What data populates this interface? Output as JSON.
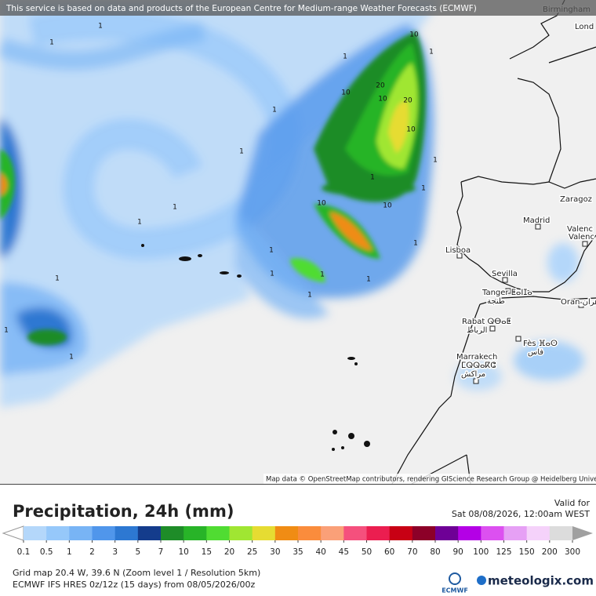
{
  "banner": "This service is based on data and products of the European Centre for Medium-range Weather Forecasts (ECMWF)",
  "map": {
    "cities": [
      {
        "lines": [
          "Birmingham"
        ]
      },
      {
        "lines": [
          "Lond"
        ]
      },
      {
        "lines": [
          "Zaragoz"
        ]
      },
      {
        "lines": [
          "Madrid"
        ]
      },
      {
        "lines": [
          "Valenc"
        ]
      },
      {
        "lines": [
          "Valenc"
        ]
      },
      {
        "lines": [
          "Lisboa"
        ]
      },
      {
        "lines": [
          "Sevilla"
        ]
      },
      {
        "lines": [
          "Tanger ⵟⴰⵏⵊⴰ",
          "طنجة"
        ]
      },
      {
        "lines": [
          "Oran وهران"
        ]
      },
      {
        "lines": [
          "Rabat ⵕⴱⴰⵟ",
          "الرباط"
        ]
      },
      {
        "lines": [
          "Fès ⴼⴰⵙ",
          "فاس"
        ]
      },
      {
        "lines": [
          "Marrakech",
          "ⵎⵕⵕⴰⴽⵛ",
          "مراكش"
        ]
      }
    ],
    "contour_labels": [
      "10",
      "1",
      "1",
      "20",
      "10",
      "20",
      "10",
      "10",
      "1",
      "1",
      "1",
      "1",
      "1",
      "1",
      "10",
      "10",
      "1",
      "1",
      "1",
      "1",
      "1",
      "1",
      "1",
      "1",
      "1",
      "1",
      "1",
      "1"
    ],
    "attribution": "Map data © OpenStreetMap contributors, rendering GIScience Research Group @ Heidelberg University"
  },
  "footer": {
    "title": "Precipitation, 24h (mm)",
    "valid_label": "Valid for",
    "valid_time": "Sat 08/08/2026, 12:00am WEST",
    "legend": {
      "labels": [
        0.1,
        0.5,
        1,
        2,
        3,
        5,
        7,
        10,
        15,
        20,
        25,
        30,
        35,
        40,
        45,
        50,
        60,
        70,
        80,
        90,
        100,
        125,
        150,
        200,
        300
      ],
      "colors": [
        "#b4d7fa",
        "#96c8fa",
        "#78b4f5",
        "#5096eb",
        "#2d78d2",
        "#143c8c",
        "#1e8c28",
        "#28b428",
        "#50dc32",
        "#a0e632",
        "#e6dc32",
        "#f08c14",
        "#fa8c3c",
        "#faa078",
        "#f5507d",
        "#eb1e50",
        "#c80014",
        "#8c0028",
        "#6e0096",
        "#b400e6",
        "#dc50f0",
        "#e6a0f5",
        "#f5d2fa",
        "#dcdcdc"
      ],
      "under_color": "#ffffff",
      "over_color": "#a0a0a0"
    },
    "grid_info": "Grid map 20.4 W, 39.6 N (Zoom level 1 / Resolution 5km)",
    "model_info": "ECMWF IFS HRES 0z/12z (15 days) from 08/05/2026/00z",
    "logos": [
      "ECMWF",
      "meteologix.com"
    ]
  }
}
